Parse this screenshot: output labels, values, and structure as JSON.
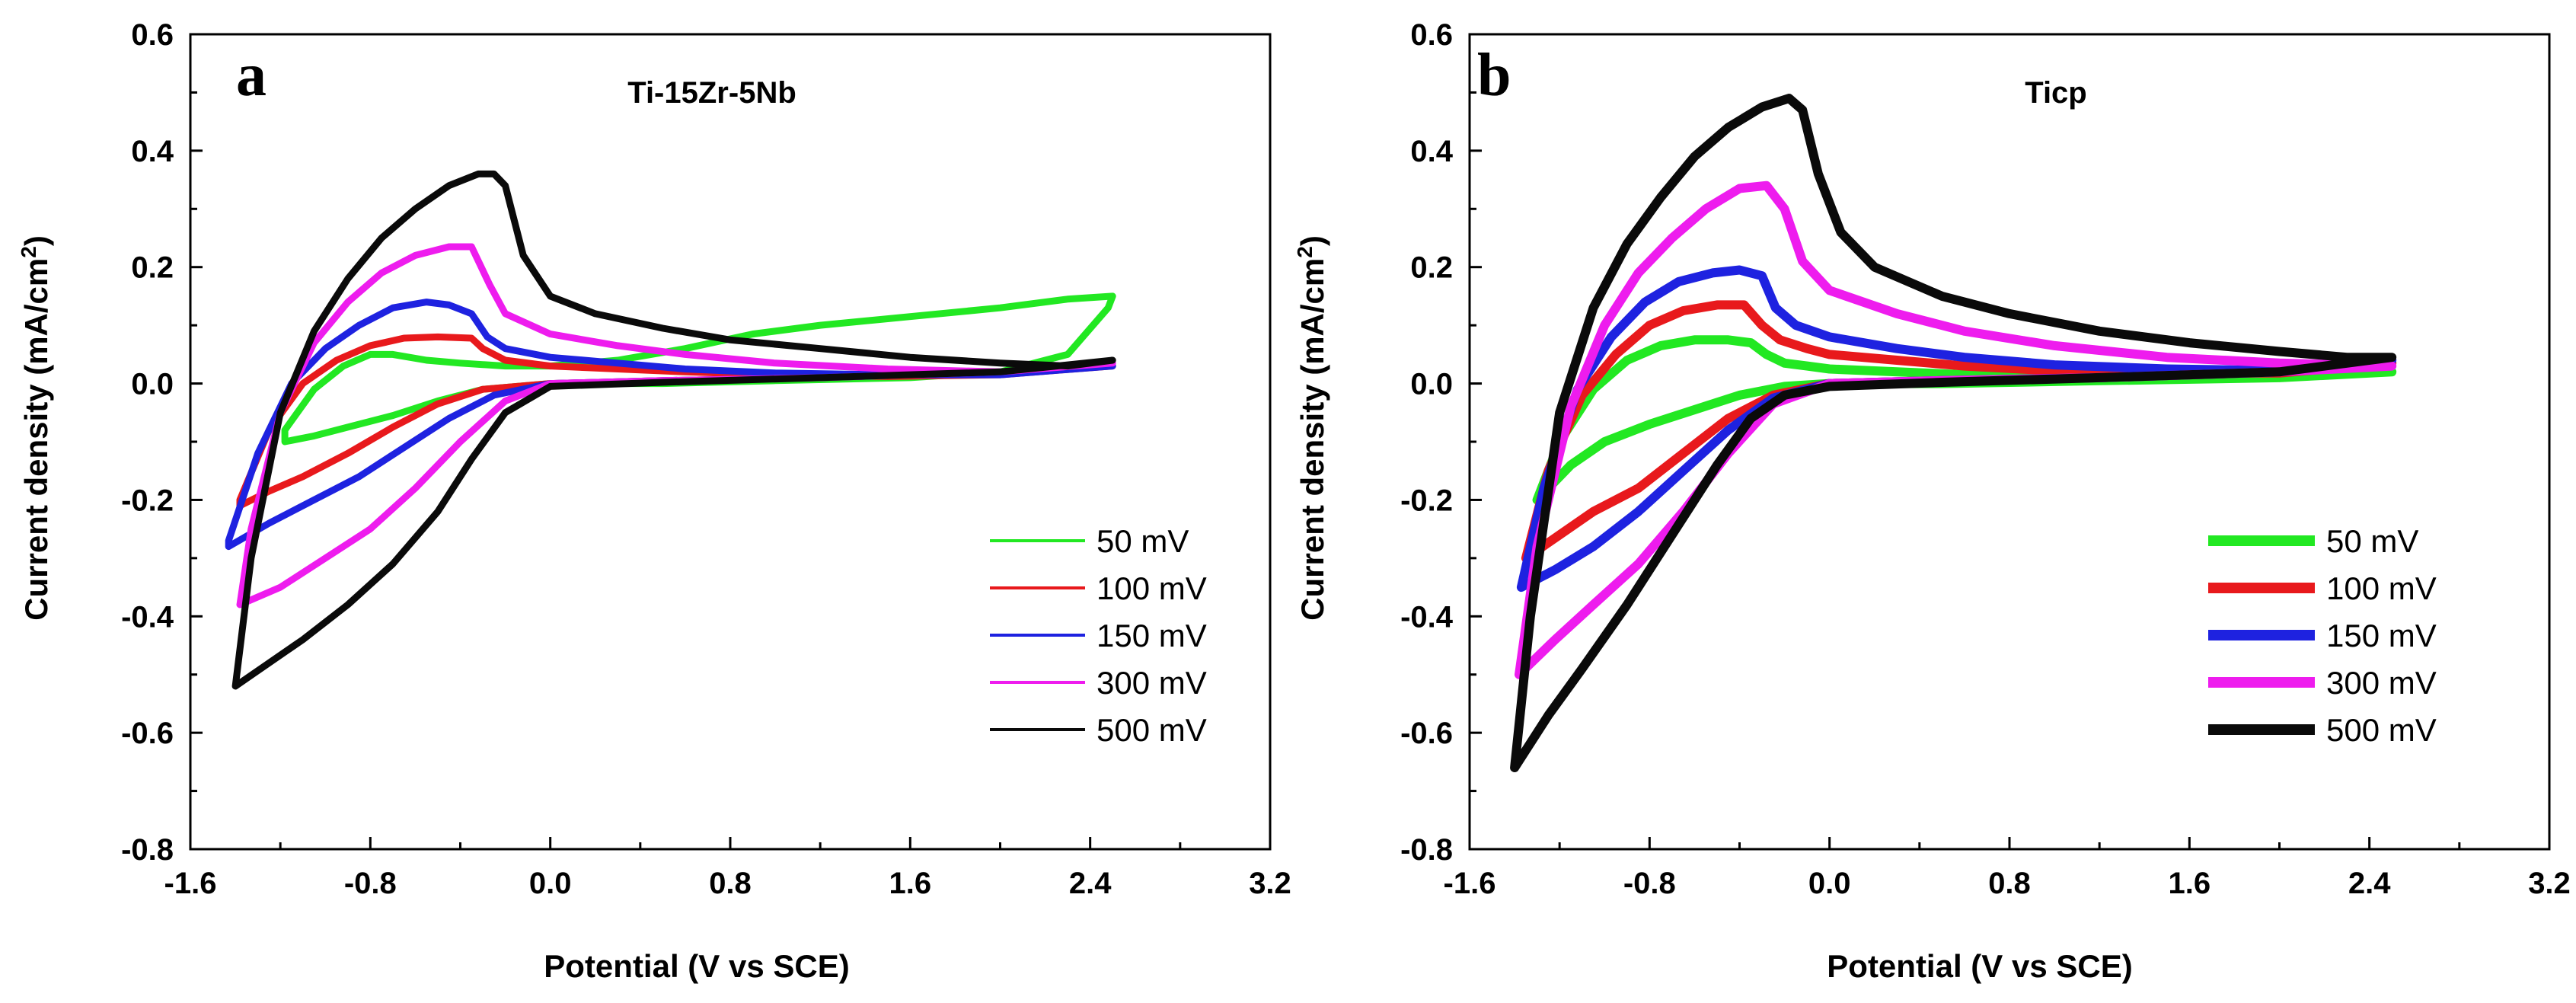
{
  "figure": {
    "description_free": true
  },
  "chart_data": [
    {
      "type": "line",
      "panel": "a",
      "title": "Ti-15Zr-5Nb",
      "xlabel": "Potential (V vs SCE)",
      "ylabel": "Current density (mA/cm2)",
      "ylabel_main": "Current density (mA/cm",
      "ylabel_sup": "2",
      "ylabel_close": ")",
      "xlim": [
        -1.6,
        3.2
      ],
      "ylim": [
        -0.8,
        0.6
      ],
      "xticks": [
        -1.6,
        -0.8,
        0.0,
        0.8,
        1.6,
        2.4,
        3.2
      ],
      "xtick_labels": [
        "-1.6",
        "-0.8",
        "0.0",
        "0.8",
        "1.6",
        "2.4",
        "3.2"
      ],
      "yticks": [
        -0.8,
        -0.6,
        -0.4,
        -0.2,
        0.0,
        0.2,
        0.4,
        0.6
      ],
      "ytick_labels": [
        "-0.8",
        "-0.6",
        "-0.4",
        "-0.2",
        "0.0",
        "0.2",
        "0.4",
        "0.6"
      ],
      "legend_position": "lower-right",
      "series": [
        {
          "name": "50 mV",
          "color": "#22e822",
          "line": "thin",
          "x": [
            -1.18,
            -1.05,
            -0.92,
            -0.8,
            -0.7,
            -0.55,
            -0.4,
            -0.2,
            0.0,
            0.3,
            0.6,
            0.9,
            1.2,
            1.6,
            2.0,
            2.3,
            2.5,
            2.48,
            2.3,
            2.0,
            1.6,
            1.0,
            0.5,
            0.0,
            -0.3,
            -0.5,
            -0.7,
            -0.9,
            -1.05,
            -1.18
          ],
          "y": [
            -0.08,
            -0.01,
            0.03,
            0.05,
            0.05,
            0.04,
            0.035,
            0.03,
            0.03,
            0.04,
            0.06,
            0.085,
            0.1,
            0.115,
            0.13,
            0.145,
            0.15,
            0.13,
            0.05,
            0.02,
            0.01,
            0.005,
            0.0,
            0.0,
            -0.01,
            -0.03,
            -0.055,
            -0.075,
            -0.09,
            -0.1
          ]
        },
        {
          "name": "100 mV",
          "color": "#e8191c",
          "line": "thin",
          "x": [
            -1.38,
            -1.25,
            -1.1,
            -0.95,
            -0.8,
            -0.65,
            -0.5,
            -0.35,
            -0.3,
            -0.2,
            0.0,
            0.3,
            0.6,
            1.0,
            1.5,
            2.0,
            2.5,
            2.0,
            1.2,
            0.5,
            0.0,
            -0.3,
            -0.5,
            -0.7,
            -0.9,
            -1.1,
            -1.25,
            -1.38
          ],
          "y": [
            -0.2,
            -0.08,
            0.0,
            0.04,
            0.065,
            0.078,
            0.08,
            0.078,
            0.06,
            0.04,
            0.03,
            0.025,
            0.02,
            0.015,
            0.012,
            0.015,
            0.03,
            0.02,
            0.01,
            0.005,
            0.0,
            -0.01,
            -0.035,
            -0.075,
            -0.12,
            -0.16,
            -0.185,
            -0.21
          ]
        },
        {
          "name": "150 mV",
          "color": "#1e22e0",
          "line": "thin",
          "x": [
            -1.43,
            -1.3,
            -1.15,
            -1.0,
            -0.85,
            -0.7,
            -0.55,
            -0.45,
            -0.35,
            -0.28,
            -0.2,
            0.0,
            0.3,
            0.6,
            1.0,
            1.5,
            2.0,
            2.5,
            2.0,
            1.2,
            0.5,
            0.0,
            -0.25,
            -0.45,
            -0.65,
            -0.85,
            -1.05,
            -1.25,
            -1.43
          ],
          "y": [
            -0.27,
            -0.12,
            0.0,
            0.06,
            0.1,
            0.13,
            0.14,
            0.135,
            0.12,
            0.08,
            0.06,
            0.045,
            0.035,
            0.025,
            0.018,
            0.015,
            0.015,
            0.03,
            0.02,
            0.01,
            0.005,
            0.0,
            -0.02,
            -0.06,
            -0.11,
            -0.16,
            -0.2,
            -0.24,
            -0.28
          ]
        },
        {
          "name": "300 mV",
          "color": "#ee1cee",
          "line": "thin",
          "x": [
            -1.38,
            -1.33,
            -1.2,
            -1.05,
            -0.9,
            -0.75,
            -0.6,
            -0.45,
            -0.35,
            -0.27,
            -0.2,
            0.0,
            0.3,
            0.6,
            1.0,
            1.5,
            2.0,
            2.5,
            2.0,
            1.2,
            0.5,
            0.0,
            -0.2,
            -0.4,
            -0.6,
            -0.8,
            -1.0,
            -1.2,
            -1.38
          ],
          "y": [
            -0.38,
            -0.25,
            -0.05,
            0.07,
            0.14,
            0.19,
            0.22,
            0.235,
            0.235,
            0.17,
            0.12,
            0.085,
            0.065,
            0.05,
            0.035,
            0.025,
            0.02,
            0.035,
            0.02,
            0.01,
            0.005,
            0.0,
            -0.03,
            -0.1,
            -0.18,
            -0.25,
            -0.3,
            -0.35,
            -0.38
          ]
        },
        {
          "name": "500 mV",
          "color": "#0a0a0a",
          "line": "thin",
          "x": [
            -1.4,
            -1.33,
            -1.2,
            -1.05,
            -0.9,
            -0.75,
            -0.6,
            -0.45,
            -0.32,
            -0.25,
            -0.2,
            -0.12,
            0.0,
            0.2,
            0.5,
            0.8,
            1.2,
            1.6,
            2.0,
            2.3,
            2.5,
            2.0,
            1.2,
            0.5,
            0.0,
            -0.2,
            -0.35,
            -0.5,
            -0.7,
            -0.9,
            -1.1,
            -1.25,
            -1.4
          ],
          "y": [
            -0.52,
            -0.3,
            -0.05,
            0.09,
            0.18,
            0.25,
            0.3,
            0.34,
            0.36,
            0.36,
            0.34,
            0.22,
            0.15,
            0.12,
            0.095,
            0.075,
            0.06,
            0.045,
            0.035,
            0.03,
            0.04,
            0.02,
            0.01,
            0.002,
            -0.005,
            -0.05,
            -0.13,
            -0.22,
            -0.31,
            -0.38,
            -0.44,
            -0.48,
            -0.52
          ]
        }
      ]
    },
    {
      "type": "line",
      "panel": "b",
      "title": "Ticp",
      "xlabel": "Potential (V vs SCE)",
      "ylabel": "Current density (mA/cm2)",
      "ylabel_main": "Current density (mA/cm",
      "ylabel_sup": "2",
      "ylabel_close": ")",
      "xlim": [
        -1.6,
        3.2
      ],
      "ylim": [
        -0.8,
        0.6
      ],
      "xticks": [
        -1.6,
        -0.8,
        0.0,
        0.8,
        1.6,
        2.4,
        3.2
      ],
      "xtick_labels": [
        "-1.6",
        "-0.8",
        "0.0",
        "0.8",
        "1.6",
        "2.4",
        "3.2"
      ],
      "yticks": [
        -0.8,
        -0.6,
        -0.4,
        -0.2,
        0.0,
        0.2,
        0.4,
        0.6
      ],
      "ytick_labels": [
        "-0.8",
        "-0.6",
        "-0.4",
        "-0.2",
        "0.0",
        "0.2",
        "0.4",
        "0.6"
      ],
      "legend_position": "lower-right",
      "series": [
        {
          "name": "50 mV",
          "color": "#22e822",
          "line": "thick",
          "x": [
            -1.3,
            -1.2,
            -1.05,
            -0.9,
            -0.75,
            -0.6,
            -0.45,
            -0.35,
            -0.28,
            -0.2,
            -0.1,
            0.0,
            0.3,
            0.6,
            1.0,
            1.5,
            2.0,
            2.5,
            2.0,
            1.2,
            0.5,
            0.0,
            -0.2,
            -0.4,
            -0.6,
            -0.8,
            -1.0,
            -1.15,
            -1.3
          ],
          "y": [
            -0.2,
            -0.1,
            -0.01,
            0.04,
            0.065,
            0.075,
            0.075,
            0.07,
            0.05,
            0.035,
            0.03,
            0.025,
            0.02,
            0.015,
            0.012,
            0.01,
            0.01,
            0.02,
            0.01,
            0.005,
            0.0,
            0.0,
            -0.005,
            -0.02,
            -0.045,
            -0.07,
            -0.1,
            -0.14,
            -0.2
          ]
        },
        {
          "name": "100 mV",
          "color": "#e8191c",
          "line": "thick",
          "x": [
            -1.35,
            -1.25,
            -1.1,
            -0.95,
            -0.8,
            -0.65,
            -0.5,
            -0.38,
            -0.3,
            -0.22,
            -0.1,
            0.0,
            0.3,
            0.6,
            1.0,
            1.5,
            2.0,
            2.5,
            2.0,
            1.2,
            0.5,
            0.0,
            -0.25,
            -0.45,
            -0.65,
            -0.85,
            -1.05,
            -1.2,
            -1.35
          ],
          "y": [
            -0.3,
            -0.15,
            -0.02,
            0.05,
            0.1,
            0.125,
            0.135,
            0.135,
            0.1,
            0.075,
            0.06,
            0.05,
            0.04,
            0.03,
            0.022,
            0.018,
            0.018,
            0.035,
            0.02,
            0.01,
            0.005,
            0.0,
            -0.02,
            -0.06,
            -0.12,
            -0.18,
            -0.22,
            -0.26,
            -0.3
          ]
        },
        {
          "name": "150 mV",
          "color": "#1e22e0",
          "line": "thick",
          "x": [
            -1.37,
            -1.27,
            -1.12,
            -0.97,
            -0.82,
            -0.67,
            -0.52,
            -0.4,
            -0.3,
            -0.24,
            -0.15,
            0.0,
            0.3,
            0.6,
            1.0,
            1.5,
            2.0,
            2.5,
            2.0,
            1.2,
            0.5,
            0.0,
            -0.25,
            -0.45,
            -0.65,
            -0.85,
            -1.05,
            -1.22,
            -1.37
          ],
          "y": [
            -0.35,
            -0.18,
            -0.01,
            0.08,
            0.14,
            0.175,
            0.19,
            0.195,
            0.185,
            0.13,
            0.1,
            0.08,
            0.06,
            0.045,
            0.032,
            0.025,
            0.022,
            0.04,
            0.02,
            0.01,
            0.005,
            0.0,
            -0.025,
            -0.08,
            -0.15,
            -0.22,
            -0.28,
            -0.32,
            -0.35
          ]
        },
        {
          "name": "300 mV",
          "color": "#ee1cee",
          "line": "thick",
          "x": [
            -1.38,
            -1.3,
            -1.15,
            -1.0,
            -0.85,
            -0.7,
            -0.55,
            -0.4,
            -0.28,
            -0.2,
            -0.12,
            0.0,
            0.3,
            0.6,
            1.0,
            1.5,
            2.0,
            2.5,
            2.0,
            1.2,
            0.5,
            0.0,
            -0.25,
            -0.45,
            -0.65,
            -0.85,
            -1.05,
            -1.22,
            -1.38
          ],
          "y": [
            -0.5,
            -0.28,
            -0.04,
            0.1,
            0.19,
            0.25,
            0.3,
            0.335,
            0.34,
            0.3,
            0.21,
            0.16,
            0.12,
            0.09,
            0.065,
            0.045,
            0.035,
            0.03,
            0.02,
            0.01,
            0.005,
            0.0,
            -0.035,
            -0.12,
            -0.22,
            -0.31,
            -0.38,
            -0.44,
            -0.5
          ]
        },
        {
          "name": "500 mV",
          "color": "#0a0a0a",
          "line": "thick",
          "x": [
            -1.4,
            -1.33,
            -1.2,
            -1.05,
            -0.9,
            -0.75,
            -0.6,
            -0.45,
            -0.3,
            -0.18,
            -0.12,
            -0.05,
            0.05,
            0.2,
            0.5,
            0.8,
            1.2,
            1.6,
            2.0,
            2.3,
            2.5,
            2.0,
            1.2,
            0.5,
            0.0,
            -0.2,
            -0.35,
            -0.5,
            -0.7,
            -0.9,
            -1.1,
            -1.25,
            -1.4
          ],
          "y": [
            -0.66,
            -0.4,
            -0.05,
            0.13,
            0.24,
            0.32,
            0.39,
            0.44,
            0.475,
            0.49,
            0.47,
            0.36,
            0.26,
            0.2,
            0.15,
            0.12,
            0.09,
            0.07,
            0.055,
            0.045,
            0.045,
            0.02,
            0.01,
            0.002,
            -0.005,
            -0.02,
            -0.06,
            -0.14,
            -0.26,
            -0.38,
            -0.49,
            -0.57,
            -0.66
          ]
        }
      ]
    }
  ]
}
